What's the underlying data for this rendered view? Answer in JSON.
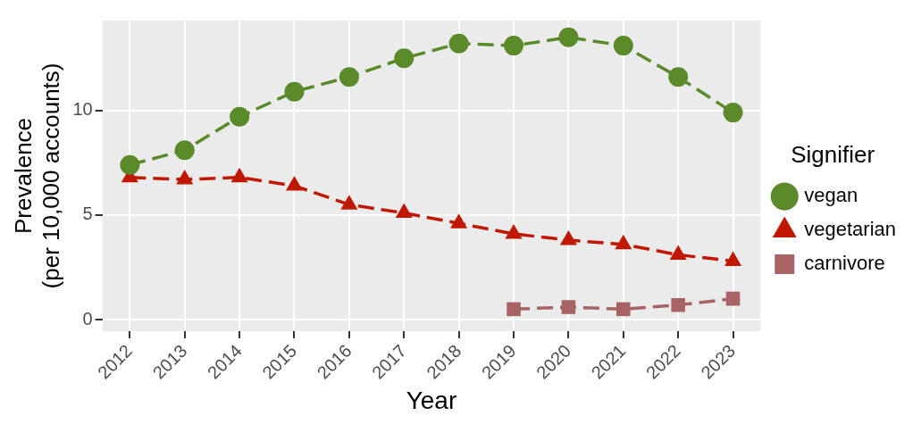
{
  "chart_data": {
    "type": "line",
    "xlabel": "Year",
    "ylabel": "Prevalence\n(per 10,000 accounts)",
    "legend_title": "Signifier",
    "categories": [
      "2012",
      "2013",
      "2014",
      "2015",
      "2016",
      "2017",
      "2018",
      "2019",
      "2020",
      "2021",
      "2022",
      "2023"
    ],
    "series": [
      {
        "name": "vegan",
        "color": "#5a8a2a",
        "marker": "circle",
        "values": [
          7.4,
          8.1,
          9.7,
          10.9,
          11.6,
          12.5,
          13.2,
          13.1,
          13.5,
          13.1,
          11.6,
          9.9
        ]
      },
      {
        "name": "vegetarian",
        "color": "#c01800",
        "marker": "triangle",
        "values": [
          6.8,
          6.7,
          6.8,
          6.4,
          5.5,
          5.1,
          4.6,
          4.1,
          3.8,
          3.6,
          3.1,
          2.8
        ]
      },
      {
        "name": "carnivore",
        "color": "#a86464",
        "marker": "square",
        "values": [
          null,
          null,
          null,
          null,
          null,
          null,
          null,
          0.5,
          0.6,
          0.5,
          0.7,
          1.0
        ]
      }
    ],
    "ylim": [
      -0.55,
      14.3
    ],
    "yticks": [
      0,
      5,
      10
    ],
    "grid": true,
    "legend": "right",
    "line_style": "dashed"
  }
}
